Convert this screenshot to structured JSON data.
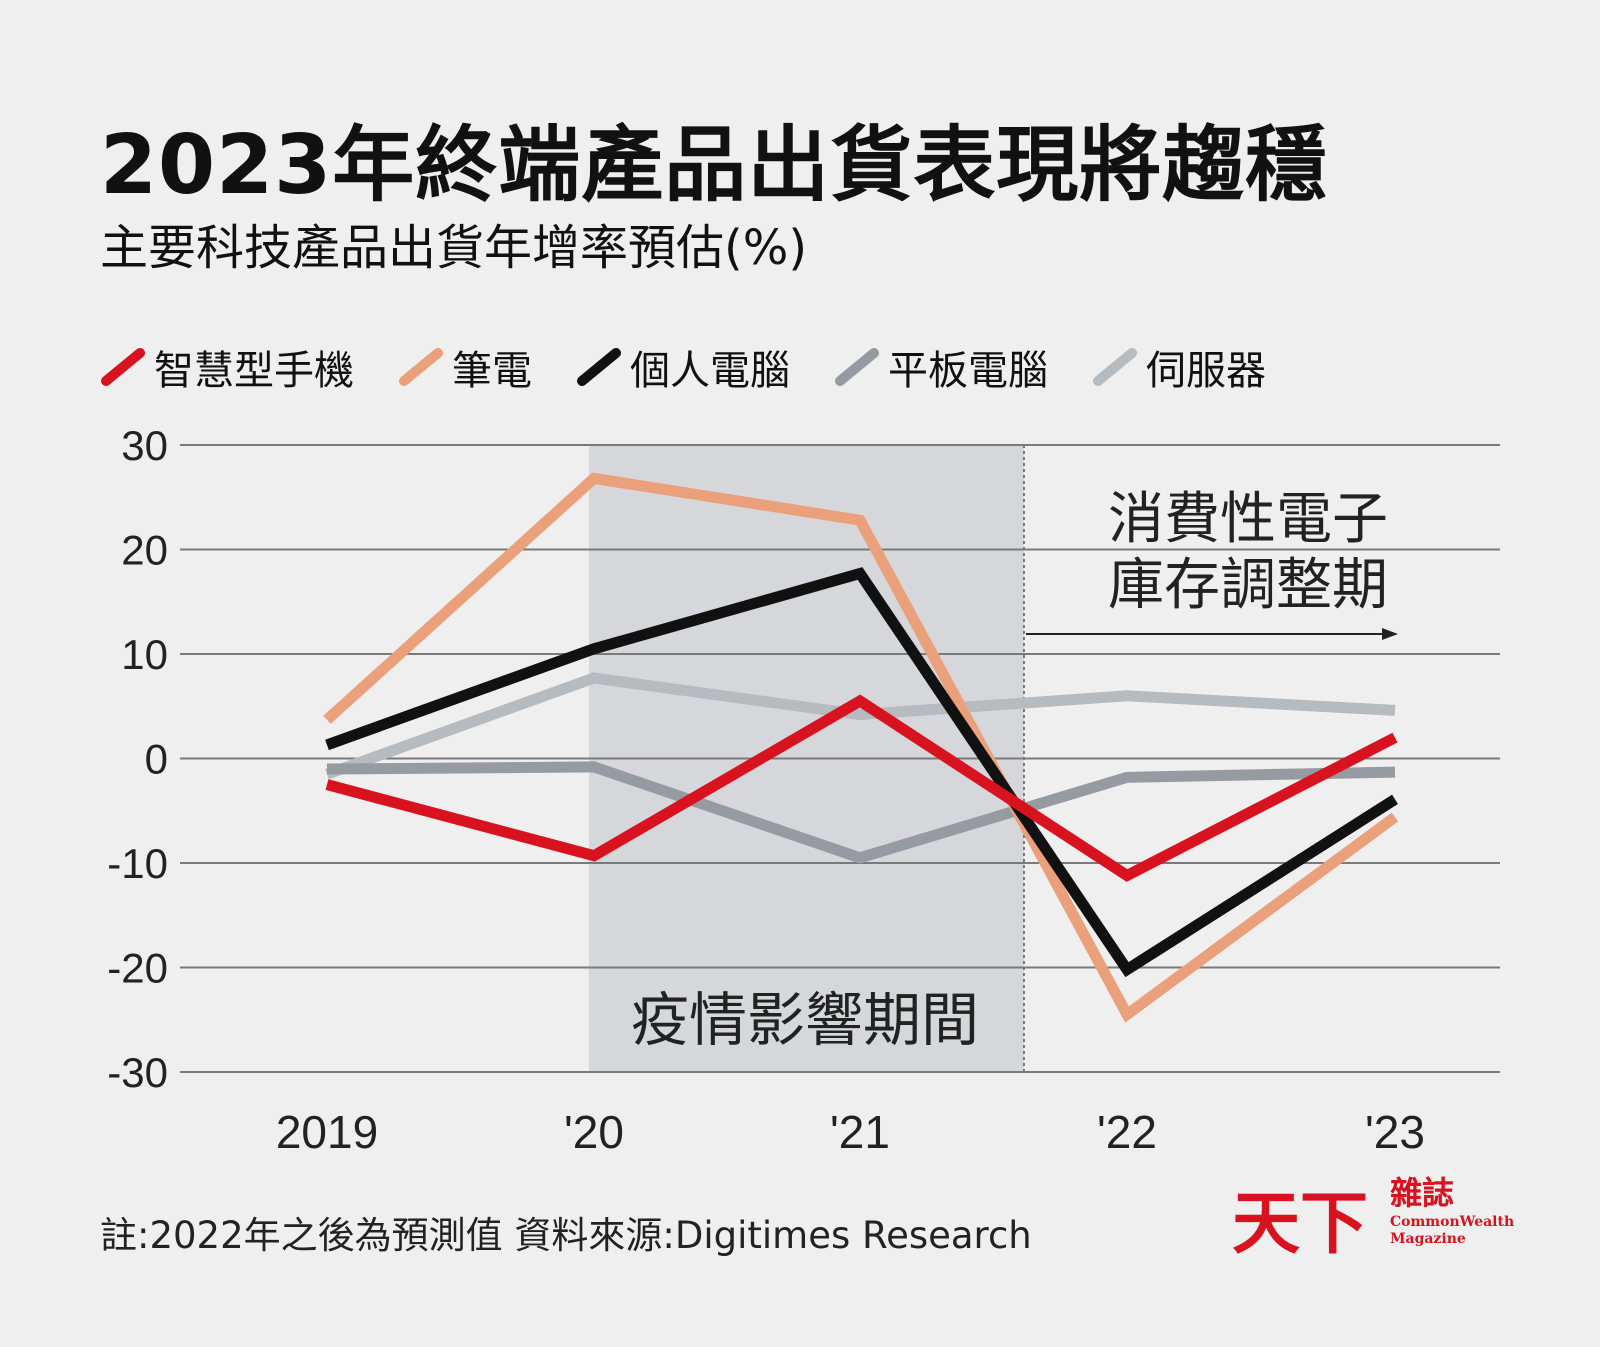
{
  "title": "2023年終端產品出貨表現將趨穩",
  "subtitle": "主要科技產品出貨年增率預估(%)",
  "chart_data": {
    "type": "line",
    "categories": [
      "2019",
      "'20",
      "'21",
      "'22",
      "'23"
    ],
    "ylim": [
      -30,
      30
    ],
    "yticks": [
      30,
      20,
      10,
      0,
      -10,
      -20,
      -30
    ],
    "grid": true,
    "legend_position": "top",
    "series": [
      {
        "name": "智慧型手機",
        "color": "#d8121e",
        "values": [
          -2.5,
          -9.3,
          5.5,
          -11.2,
          2.0
        ]
      },
      {
        "name": "筆電",
        "color": "#eba07c",
        "values": [
          3.7,
          26.8,
          22.8,
          -24.5,
          -5.6
        ]
      },
      {
        "name": "個人電腦",
        "color": "#111111",
        "values": [
          1.3,
          10.5,
          17.7,
          -20.2,
          -3.9
        ]
      },
      {
        "name": "平板電腦",
        "color": "#959ba1",
        "values": [
          -1.0,
          -0.8,
          -9.5,
          -1.8,
          -1.3
        ]
      },
      {
        "name": "伺服器",
        "color": "#b6bbc0",
        "values": [
          -1.5,
          7.7,
          4.2,
          6.0,
          4.6
        ]
      }
    ],
    "annotations": {
      "pandemic_label": "疫情影響期間",
      "inventory_line1": "消費性電子",
      "inventory_line2": "庫存調整期"
    }
  },
  "footnote": "註:2022年之後為預測值    資料來源:Digitimes Research",
  "brand": {
    "main": "天下",
    "sub": "雜誌",
    "english_line1": "CommonWealth",
    "english_line2": "Magazine"
  }
}
